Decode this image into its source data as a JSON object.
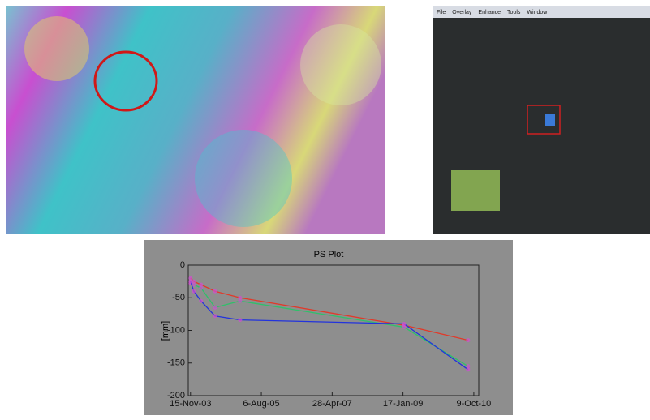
{
  "menu_bar": [
    "File",
    "Overlay",
    "Enhance",
    "Tools",
    "Window"
  ],
  "chart_data": {
    "type": "line",
    "title": "PS Plot",
    "y_label": "[mm]",
    "x": [
      "2003-11-15",
      "2003-12-14",
      "2004-02-17",
      "2004-06-20",
      "2005-01-29",
      "2009-01-26",
      "2010-08-19"
    ],
    "series": [
      {
        "color": "#e03a2a",
        "values": [
          -20,
          -25,
          -30,
          -40,
          -50,
          -92,
          -115
        ]
      },
      {
        "color": "#2fc06a",
        "values": [
          -28,
          -30,
          -35,
          -65,
          -55,
          -95,
          -155
        ]
      },
      {
        "color": "#2233dd",
        "values": [
          -25,
          -40,
          -55,
          -78,
          -84,
          -90,
          -160
        ]
      }
    ],
    "xlim": [
      "2003-10-26",
      "2010-11-22"
    ],
    "xticks": [
      {
        "value": "2003-11-15",
        "label": "15-Nov-03"
      },
      {
        "value": "2005-08-06",
        "label": "6-Aug-05"
      },
      {
        "value": "2007-04-28",
        "label": "28-Apr-07"
      },
      {
        "value": "2009-01-17",
        "label": "17-Jan-09"
      },
      {
        "value": "2010-10-09",
        "label": "9-Oct-10"
      }
    ],
    "ylim": [
      -200,
      0
    ],
    "yticks": [
      0,
      -50,
      -100,
      -150,
      -200
    ]
  }
}
